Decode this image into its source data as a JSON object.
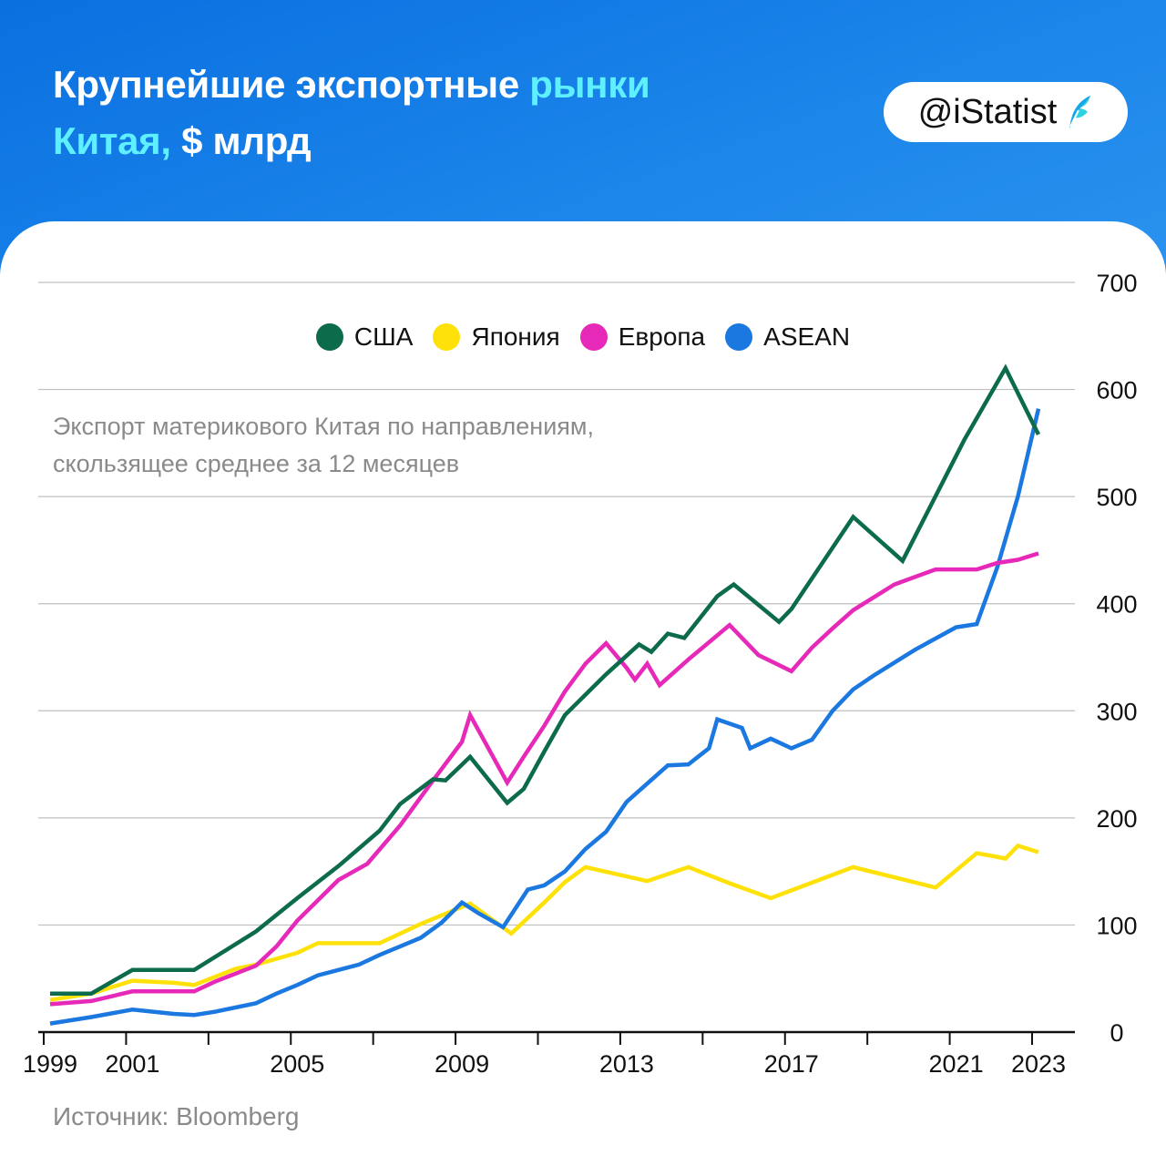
{
  "header": {
    "title_line1_a": "Крупнейшие экспортные ",
    "title_line1_b": "рынки",
    "title_line2_a": "Китая,",
    "title_line2_b": " $ млрд",
    "brand": "@iStatist"
  },
  "subtitle_line1": "Экспорт материкового Китая по направлениям,",
  "subtitle_line2": "скользящее среднее за 12 месяцев",
  "source": "Источник: Bloomberg",
  "colors": {
    "usa": "#0b6b4a",
    "japan": "#ffe10a",
    "europe": "#e629b8",
    "asean": "#1a78e0",
    "header_bg": "#0a6fe0",
    "title_highlight": "#5ff0ff"
  },
  "chart_data": {
    "type": "line",
    "title": "Крупнейшие экспортные рынки Китая, $ млрд",
    "xlabel": "",
    "ylabel": "",
    "xlim": [
      1999,
      2023
    ],
    "ylim": [
      0,
      700
    ],
    "x_ticks": [
      1999,
      2001,
      2005,
      2009,
      2013,
      2017,
      2021,
      2023
    ],
    "y_ticks": [
      0,
      100,
      200,
      300,
      400,
      500,
      600,
      700
    ],
    "grid": true,
    "legend_position": "top",
    "series": [
      {
        "name": "США",
        "key": "usa",
        "points": [
          [
            1999,
            36
          ],
          [
            2000,
            36
          ],
          [
            2001,
            58
          ],
          [
            2002,
            58
          ],
          [
            2002.5,
            58
          ],
          [
            2004,
            94
          ],
          [
            2005,
            125
          ],
          [
            2006,
            155
          ],
          [
            2007,
            188
          ],
          [
            2007.5,
            213
          ],
          [
            2008.3,
            236
          ],
          [
            2008.6,
            235
          ],
          [
            2009.2,
            257
          ],
          [
            2010.1,
            214
          ],
          [
            2010.5,
            227
          ],
          [
            2011,
            262
          ],
          [
            2011.5,
            296
          ],
          [
            2012,
            315
          ],
          [
            2012.5,
            334
          ],
          [
            2013.3,
            362
          ],
          [
            2013.6,
            355
          ],
          [
            2014,
            372
          ],
          [
            2014.4,
            368
          ],
          [
            2015.2,
            407
          ],
          [
            2015.6,
            418
          ],
          [
            2016.7,
            383
          ],
          [
            2017,
            395
          ],
          [
            2018.5,
            481
          ],
          [
            2019.7,
            440
          ],
          [
            2021.2,
            553
          ],
          [
            2022.2,
            620
          ],
          [
            2023,
            558
          ]
        ]
      },
      {
        "name": "Япония",
        "key": "japan",
        "points": [
          [
            1999,
            30
          ],
          [
            2000,
            36
          ],
          [
            2001,
            48
          ],
          [
            2002,
            46
          ],
          [
            2002.5,
            44
          ],
          [
            2003.5,
            59
          ],
          [
            2004,
            63
          ],
          [
            2005,
            74
          ],
          [
            2005.5,
            83
          ],
          [
            2006,
            83
          ],
          [
            2007,
            83
          ],
          [
            2008,
            101
          ],
          [
            2009.2,
            120
          ],
          [
            2010.2,
            92
          ],
          [
            2010.5,
            103
          ],
          [
            2011,
            121
          ],
          [
            2011.5,
            140
          ],
          [
            2012,
            154
          ],
          [
            2013.5,
            141
          ],
          [
            2014.5,
            154
          ],
          [
            2015.5,
            139
          ],
          [
            2016.5,
            125
          ],
          [
            2018.5,
            154
          ],
          [
            2020.5,
            135
          ],
          [
            2021.5,
            167
          ],
          [
            2021.8,
            165
          ],
          [
            2022.2,
            162
          ],
          [
            2022.5,
            174
          ],
          [
            2023,
            168
          ]
        ]
      },
      {
        "name": "Европа",
        "key": "europe",
        "points": [
          [
            1999,
            26
          ],
          [
            2000,
            29
          ],
          [
            2001,
            38
          ],
          [
            2002,
            38
          ],
          [
            2002.5,
            38
          ],
          [
            2003,
            47
          ],
          [
            2004,
            62
          ],
          [
            2004.5,
            80
          ],
          [
            2005,
            104
          ],
          [
            2006,
            142
          ],
          [
            2006.7,
            157
          ],
          [
            2007.5,
            193
          ],
          [
            2008.3,
            235
          ],
          [
            2009,
            271
          ],
          [
            2009.2,
            296
          ],
          [
            2010.1,
            233
          ],
          [
            2010.5,
            257
          ],
          [
            2011,
            286
          ],
          [
            2011.5,
            318
          ],
          [
            2012,
            344
          ],
          [
            2012.5,
            363
          ],
          [
            2013,
            340
          ],
          [
            2013.2,
            329
          ],
          [
            2013.5,
            344
          ],
          [
            2013.8,
            324
          ],
          [
            2014.5,
            348
          ],
          [
            2015.5,
            380
          ],
          [
            2016.2,
            352
          ],
          [
            2017,
            337
          ],
          [
            2017.5,
            359
          ],
          [
            2018,
            377
          ],
          [
            2018.5,
            394
          ],
          [
            2019.5,
            418
          ],
          [
            2020.5,
            432
          ],
          [
            2021.5,
            432
          ],
          [
            2022,
            438
          ],
          [
            2022.5,
            441
          ],
          [
            2023,
            447
          ]
        ]
      },
      {
        "name": "ASEAN",
        "key": "asean",
        "points": [
          [
            1999,
            8
          ],
          [
            2000,
            14
          ],
          [
            2001,
            21
          ],
          [
            2002,
            17
          ],
          [
            2002.5,
            16
          ],
          [
            2003,
            19
          ],
          [
            2004,
            27
          ],
          [
            2004.5,
            36
          ],
          [
            2005,
            44
          ],
          [
            2005.5,
            53
          ],
          [
            2006,
            58
          ],
          [
            2006.5,
            63
          ],
          [
            2007,
            72
          ],
          [
            2007.5,
            80
          ],
          [
            2008,
            88
          ],
          [
            2008.5,
            102
          ],
          [
            2009,
            121
          ],
          [
            2009.4,
            111
          ],
          [
            2010,
            98
          ],
          [
            2010.6,
            133
          ],
          [
            2011,
            137
          ],
          [
            2011.5,
            150
          ],
          [
            2012,
            171
          ],
          [
            2012.5,
            187
          ],
          [
            2013,
            215
          ],
          [
            2013.5,
            232
          ],
          [
            2014,
            249
          ],
          [
            2014.5,
            250
          ],
          [
            2015,
            265
          ],
          [
            2015.2,
            292
          ],
          [
            2015.5,
            288
          ],
          [
            2015.8,
            284
          ],
          [
            2016,
            265
          ],
          [
            2016.5,
            274
          ],
          [
            2017,
            265
          ],
          [
            2017.5,
            273
          ],
          [
            2018,
            300
          ],
          [
            2018.5,
            320
          ],
          [
            2019,
            333
          ],
          [
            2020,
            357
          ],
          [
            2021,
            378
          ],
          [
            2021.5,
            381
          ],
          [
            2022,
            434
          ],
          [
            2022.5,
            500
          ],
          [
            2023,
            582
          ]
        ]
      }
    ]
  }
}
